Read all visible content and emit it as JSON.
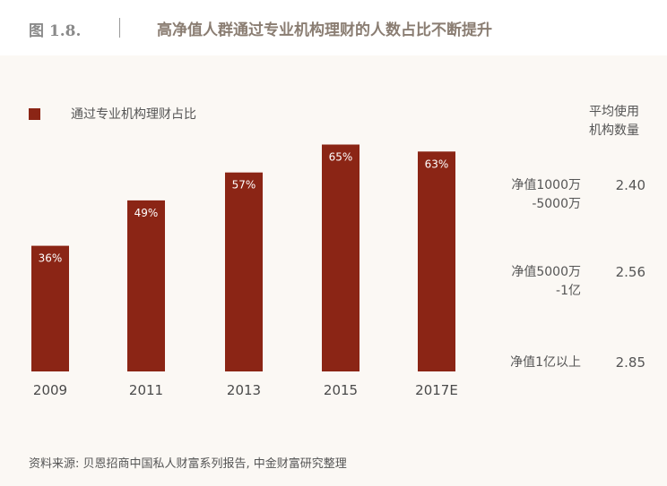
{
  "header": {
    "figure_number": "图 1.8.",
    "title": "高净值人群通过专业机构理财的人数占比不断提升"
  },
  "chart_data": {
    "type": "bar",
    "categories": [
      "2009",
      "2011",
      "2013",
      "2015",
      "2017E"
    ],
    "series": [
      {
        "name": "通过专业机构理财占比",
        "values": [
          36,
          49,
          57,
          65,
          63
        ],
        "labels": [
          "36%",
          "49%",
          "57%",
          "65%",
          "63%"
        ],
        "color": "#8b2515"
      }
    ],
    "ylim": [
      0,
      100
    ],
    "grid": false,
    "legend_position": "top-left"
  },
  "side_table": {
    "header_line1": "平均使用",
    "header_line2": "机构数量",
    "rows": [
      {
        "category_line1": "净值1000万",
        "category_line2": "-5000万",
        "value": "2.40"
      },
      {
        "category_line1": "净值5000万",
        "category_line2": "-1亿",
        "value": "2.56"
      },
      {
        "category_line1": "净值1亿以上",
        "category_line2": "",
        "value": "2.85"
      }
    ]
  },
  "source": "资料来源: 贝恩招商中国私人财富系列报告, 中金财富研究整理"
}
